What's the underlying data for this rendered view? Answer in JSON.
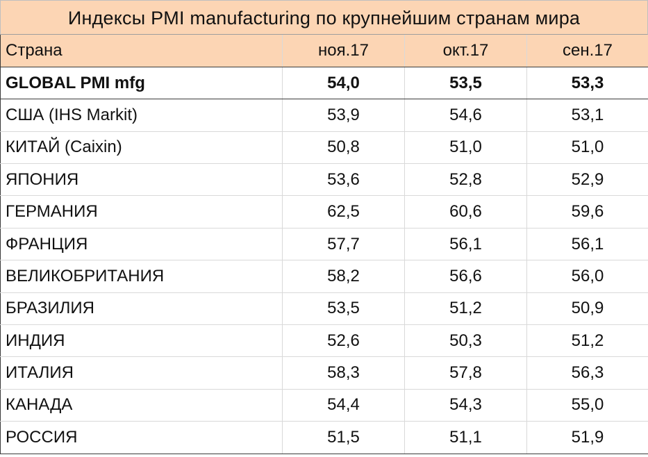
{
  "chart_data": {
    "type": "table",
    "title": "Индексы PMI manufacturing по крупнейшим странам мира",
    "columns": [
      "Страна",
      "ноя.17",
      "окт.17",
      "сен.17"
    ],
    "rows": [
      {
        "country": "GLOBAL PMI mfg",
        "values": [
          "54,0",
          "53,5",
          "53,3"
        ]
      },
      {
        "country": "США (IHS Markit)",
        "values": [
          "53,9",
          "54,6",
          "53,1"
        ]
      },
      {
        "country": "КИТАЙ (Caixin)",
        "values": [
          "50,8",
          "51,0",
          "51,0"
        ]
      },
      {
        "country": "ЯПОНИЯ",
        "values": [
          "53,6",
          "52,8",
          "52,9"
        ]
      },
      {
        "country": "ГЕРМАНИЯ",
        "values": [
          "62,5",
          "60,6",
          "59,6"
        ]
      },
      {
        "country": "ФРАНЦИЯ",
        "values": [
          "57,7",
          "56,1",
          "56,1"
        ]
      },
      {
        "country": "ВЕЛИКОБРИТАНИЯ",
        "values": [
          "58,2",
          "56,6",
          "56,0"
        ]
      },
      {
        "country": "БРАЗИЛИЯ",
        "values": [
          "53,5",
          "51,2",
          "50,9"
        ]
      },
      {
        "country": "ИНДИЯ",
        "values": [
          "52,6",
          "50,3",
          "51,2"
        ]
      },
      {
        "country": "ИТАЛИЯ",
        "values": [
          "58,3",
          "57,8",
          "56,3"
        ]
      },
      {
        "country": "КАНАДА",
        "values": [
          "54,4",
          "54,3",
          "55,0"
        ]
      },
      {
        "country": "РОССИЯ",
        "values": [
          "51,5",
          "51,1",
          "51,9"
        ]
      }
    ],
    "header_fill": "#fcd5b4"
  }
}
